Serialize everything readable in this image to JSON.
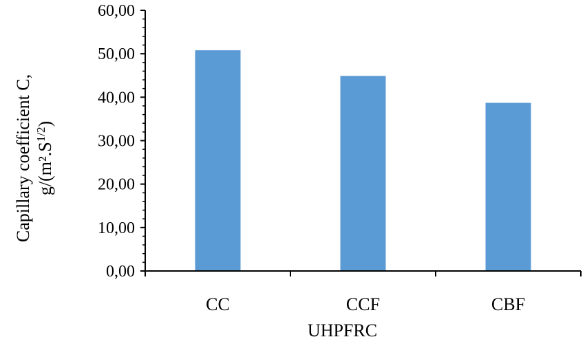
{
  "chart_data": {
    "type": "bar",
    "categories": [
      "CC",
      "CCF",
      "CBF"
    ],
    "values": [
      50.8,
      44.9,
      38.7
    ],
    "xlabel": "UHPFRC",
    "ylabel_line1": "Capillary coefficient C,",
    "ylabel_line2": "g/(m².S",
    "ylabel_exponent": "1/2",
    "ylabel_close": ")",
    "ylim": [
      0,
      60
    ],
    "yticks": [
      0,
      10,
      20,
      30,
      40,
      50,
      60
    ],
    "ytick_labels": [
      "0,00",
      "10,00",
      "20,00",
      "30,00",
      "40,00",
      "50,00",
      "60,00"
    ],
    "grid": false,
    "legend": "none",
    "bar_color": "#5B9BD5",
    "axis_color": "#000000"
  }
}
